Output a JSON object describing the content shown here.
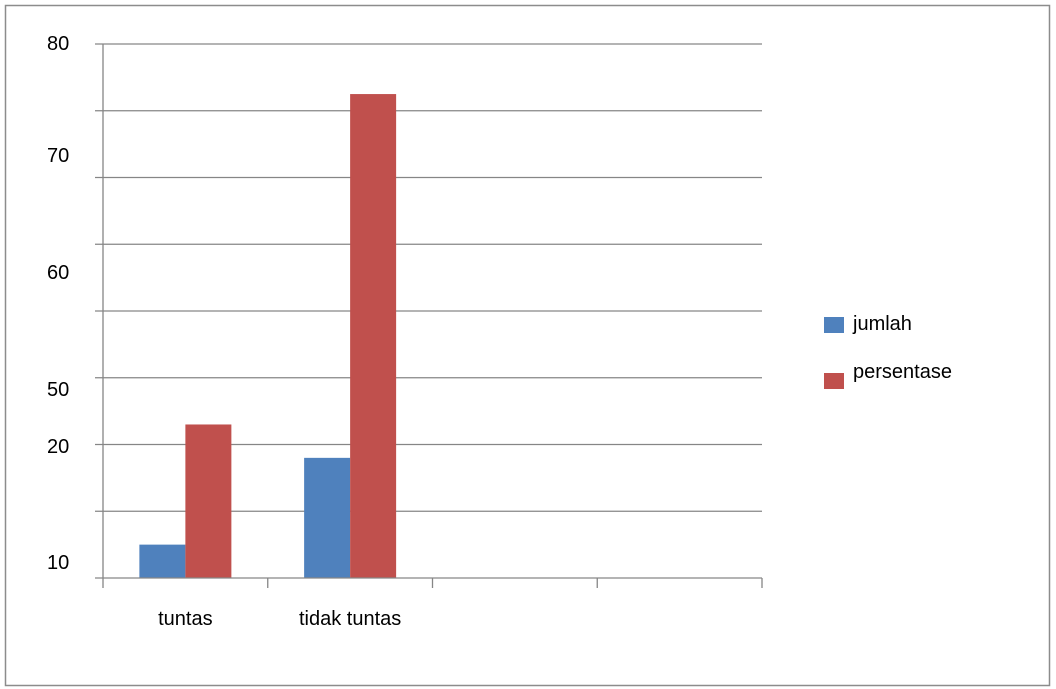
{
  "chart_data": {
    "type": "bar",
    "categories": [
      "tuntas",
      "tidak tuntas",
      "",
      ""
    ],
    "series": [
      {
        "name": "jumlah",
        "values": [
          5,
          18,
          null,
          null
        ],
        "color": "#4F81BD"
      },
      {
        "name": "persentase",
        "values": [
          23,
          72.5,
          null,
          null
        ],
        "color": "#C0504D"
      }
    ],
    "y_ticks": [
      "10",
      "20",
      "50",
      "60",
      "70",
      "80"
    ],
    "ylim": [
      0,
      80
    ],
    "grid": true,
    "legend": "right",
    "title": "",
    "xlabel": "",
    "ylabel": ""
  }
}
